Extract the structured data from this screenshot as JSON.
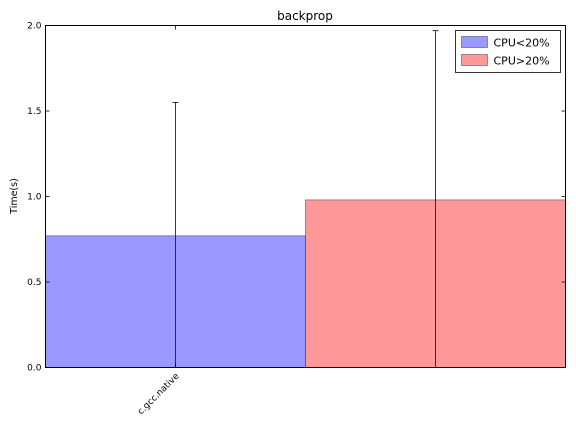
{
  "chart_data": {
    "type": "bar",
    "title": "backprop",
    "xlabel": "",
    "ylabel": "Time(s)",
    "categories": [
      "c.gcc.native"
    ],
    "ylim": [
      0,
      2.0
    ],
    "yticks": [
      0.0,
      0.5,
      1.0,
      1.5,
      2.0
    ],
    "ytick_labels": [
      "0.0",
      "0.5",
      "1.0",
      "1.5",
      "2.0"
    ],
    "series": [
      {
        "name": "CPU<20%",
        "values": [
          0.77
        ],
        "error_upper": [
          1.55
        ],
        "error_lower": [
          0.0
        ],
        "color": "#9999ff"
      },
      {
        "name": "CPU>20%",
        "values": [
          0.98
        ],
        "error_upper": [
          1.97
        ],
        "error_lower": [
          0.0
        ],
        "color": "#ff9999"
      }
    ],
    "legend": "top-right",
    "grid": false
  }
}
